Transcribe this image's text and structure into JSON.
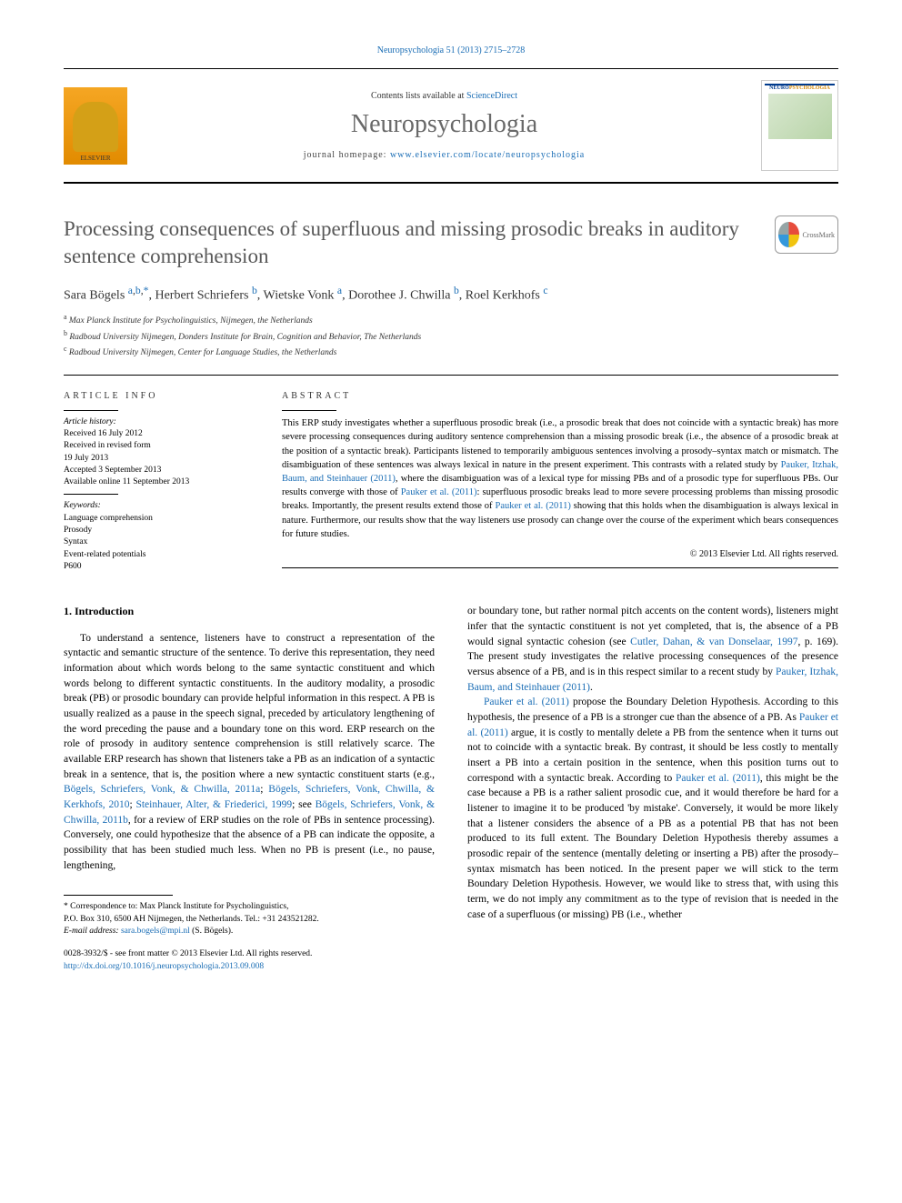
{
  "top_citation": {
    "journal": "Neuropsychologia",
    "vol": "51",
    "year": "2013",
    "pages": "2715–2728",
    "link_text": "Neuropsychologia 51 (2013) 2715–2728"
  },
  "header": {
    "contents_prefix": "Contents lists available at ",
    "contents_link": "ScienceDirect",
    "journal_name": "Neuropsychologia",
    "homepage_prefix": "journal homepage: ",
    "homepage_url": "www.elsevier.com/locate/neuropsychologia",
    "elsevier_label": "ELSEVIER",
    "cover_title_a": "NEURO",
    "cover_title_b": "PSYCHOLOGIA"
  },
  "title": "Processing consequences of superfluous and missing prosodic breaks in auditory sentence comprehension",
  "crossmark_label": "CrossMark",
  "authors_html": "Sara Bögels <sup><a href='#'>a</a>,<a href='#'>b</a>,<a href='#'>*</a></sup>, Herbert Schriefers <sup><a href='#'>b</a></sup>, Wietske Vonk <sup><a href='#'>a</a></sup>, Dorothee J. Chwilla <sup><a href='#'>b</a></sup>, Roel Kerkhofs <sup><a href='#'>c</a></sup>",
  "affiliations": [
    {
      "sup": "a",
      "text": "Max Planck Institute for Psycholinguistics, Nijmegen, the Netherlands"
    },
    {
      "sup": "b",
      "text": "Radboud University Nijmegen, Donders Institute for Brain, Cognition and Behavior, The Netherlands"
    },
    {
      "sup": "c",
      "text": "Radboud University Nijmegen, Center for Language Studies, the Netherlands"
    }
  ],
  "article_info": {
    "heading": "ARTICLE INFO",
    "history_label": "Article history:",
    "received": "Received 16 July 2012",
    "revised1": "Received in revised form",
    "revised2": "19 July 2013",
    "accepted": "Accepted 3 September 2013",
    "online": "Available online 11 September 2013",
    "keywords_label": "Keywords:",
    "keywords": [
      "Language comprehension",
      "Prosody",
      "Syntax",
      "Event-related potentials",
      "P600"
    ]
  },
  "abstract": {
    "heading": "ABSTRACT",
    "text_pre": "This ERP study investigates whether a superfluous prosodic break (i.e., a prosodic break that does not coincide with a syntactic break) has more severe processing consequences during auditory sentence comprehension than a missing prosodic break (i.e., the absence of a prosodic break at the position of a syntactic break). Participants listened to temporarily ambiguous sentences involving a prosody–syntax match or mismatch. The disambiguation of these sentences was always lexical in nature in the present experiment. This contrasts with a related study by ",
    "link1": "Pauker, Itzhak, Baum, and Steinhauer (2011)",
    "text_mid1": ", where the disambiguation was of a lexical type for missing PBs and of a prosodic type for superfluous PBs. Our results converge with those of ",
    "link2": "Pauker et al. (2011)",
    "text_mid2": ": superfluous prosodic breaks lead to more severe processing problems than missing prosodic breaks. Importantly, the present results extend those of ",
    "link3": "Pauker et al. (2011)",
    "text_post": " showing that this holds when the disambiguation is always lexical in nature. Furthermore, our results show that the way listeners use prosody can change over the course of the experiment which bears consequences for future studies.",
    "copyright": "© 2013 Elsevier Ltd. All rights reserved."
  },
  "intro": {
    "heading": "1.  Introduction",
    "col1_p1_a": "To understand a sentence, listeners have to construct a representation of the syntactic and semantic structure of the sentence. To derive this representation, they need information about which words belong to the same syntactic constituent and which words belong to different syntactic constituents. In the auditory modality, a prosodic break (PB) or prosodic boundary can provide helpful information in this respect. A PB is usually realized as a pause in the speech signal, preceded by articulatory lengthening of the word preceding the pause and a boundary tone on this word. ERP research on the role of prosody in auditory sentence comprehension is still relatively scarce. The available ERP research has shown that listeners take a PB as an indication of a syntactic break in a sentence, that is, the position where a new syntactic constituent starts (e.g., ",
    "col1_links": [
      "Bögels, Schriefers, Vonk, & Chwilla, 2011a",
      "Bögels, Schriefers, Vonk, Chwilla, & Kerkhofs, 2010",
      "Steinhauer, Alter, & Friederici, 1999"
    ],
    "col1_see": "; see ",
    "col1_link_review": "Bögels, Schriefers, Vonk, & Chwilla, 2011b",
    "col1_p1_b": ", for a review of ERP studies on the role of PBs in sentence processing). Conversely, one could hypothesize that the absence of a PB can indicate the opposite, a possibility that has been studied much less. When no PB is present (i.e., no pause, lengthening,",
    "col2_p1_a": "or boundary tone, but rather normal pitch accents on the content words), listeners might infer that the syntactic constituent is not yet completed, that is, the absence of a PB would signal syntactic cohesion (see ",
    "col2_link1": "Cutler, Dahan, & van Donselaar, 1997",
    "col2_p1_b": ", p. 169). The present study investigates the relative processing consequences of the presence versus absence of a PB, and is in this respect similar to a recent study by ",
    "col2_link2": "Pauker, Itzhak, Baum, and Steinhauer (2011)",
    "col2_p1_c": ".",
    "col2_p2_a": "",
    "col2_link3": "Pauker et al. (2011)",
    "col2_p2_b": " propose the Boundary Deletion Hypothesis. According to this hypothesis, the presence of a PB is a stronger cue than the absence of a PB. As ",
    "col2_link4": "Pauker et al. (2011)",
    "col2_p2_c": " argue, it is costly to mentally delete a PB from the sentence when it turns out not to coincide with a syntactic break. By contrast, it should be less costly to mentally insert a PB into a certain position in the sentence, when this position turns out to correspond with a syntactic break. According to ",
    "col2_link5": "Pauker et al. (2011)",
    "col2_p2_d": ", this might be the case because a PB is a rather salient prosodic cue, and it would therefore be hard for a listener to imagine it to be produced 'by mistake'. Conversely, it would be more likely that a listener considers the absence of a PB as a potential PB that has not been produced to its full extent. The Boundary Deletion Hypothesis thereby assumes a prosodic repair of the sentence (mentally deleting or inserting a PB) after the prosody–syntax mismatch has been noticed. In the present paper we will stick to the term Boundary Deletion Hypothesis. However, we would like to stress that, with using this term, we do not imply any commitment as to the type of revision that is needed in the case of a superfluous (or missing) PB (i.e., whether"
  },
  "footnote": {
    "corr_a": "* Correspondence to: Max Planck Institute for Psycholinguistics,",
    "corr_b": "P.O. Box 310, 6500 AH Nijmegen, the Netherlands. Tel.: +31 243521282.",
    "email_label": "E-mail address: ",
    "email": "sara.bogels@mpi.nl",
    "email_who": " (S. Bögels)."
  },
  "bottom": {
    "line1": "0028-3932/$ - see front matter © 2013 Elsevier Ltd. All rights reserved.",
    "doi": "http://dx.doi.org/10.1016/j.neuropsychologia.2013.09.008"
  },
  "colors": {
    "link": "#1a6db5",
    "title_grey": "#585858",
    "journal_grey": "#696969"
  }
}
